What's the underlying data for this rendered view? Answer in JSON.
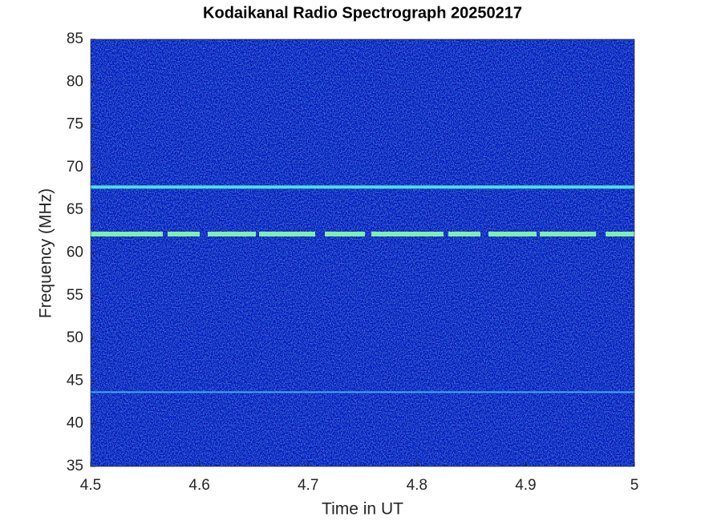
{
  "chart_data": {
    "type": "spectrogram",
    "title": "Kodaikanal Radio Spectrograph  20250217",
    "xlabel": "Time in UT",
    "ylabel": "Frequency (MHz)",
    "xlim": [
      4.5,
      5
    ],
    "ylim": [
      35,
      85
    ],
    "xticks": [
      4.5,
      4.6,
      4.7,
      4.8,
      4.9,
      5
    ],
    "yticks": [
      35,
      40,
      45,
      50,
      55,
      60,
      65,
      70,
      75,
      80,
      85
    ],
    "background_color": "#0b1fa6",
    "bands": [
      {
        "frequency": 67.7,
        "color": "#4fe0e0",
        "style": "solid"
      },
      {
        "frequency": 62.2,
        "color": "#7ff0a8",
        "style": "dashed"
      },
      {
        "frequency": 43.7,
        "color": "#3aa8f0",
        "style": "thin"
      }
    ]
  }
}
